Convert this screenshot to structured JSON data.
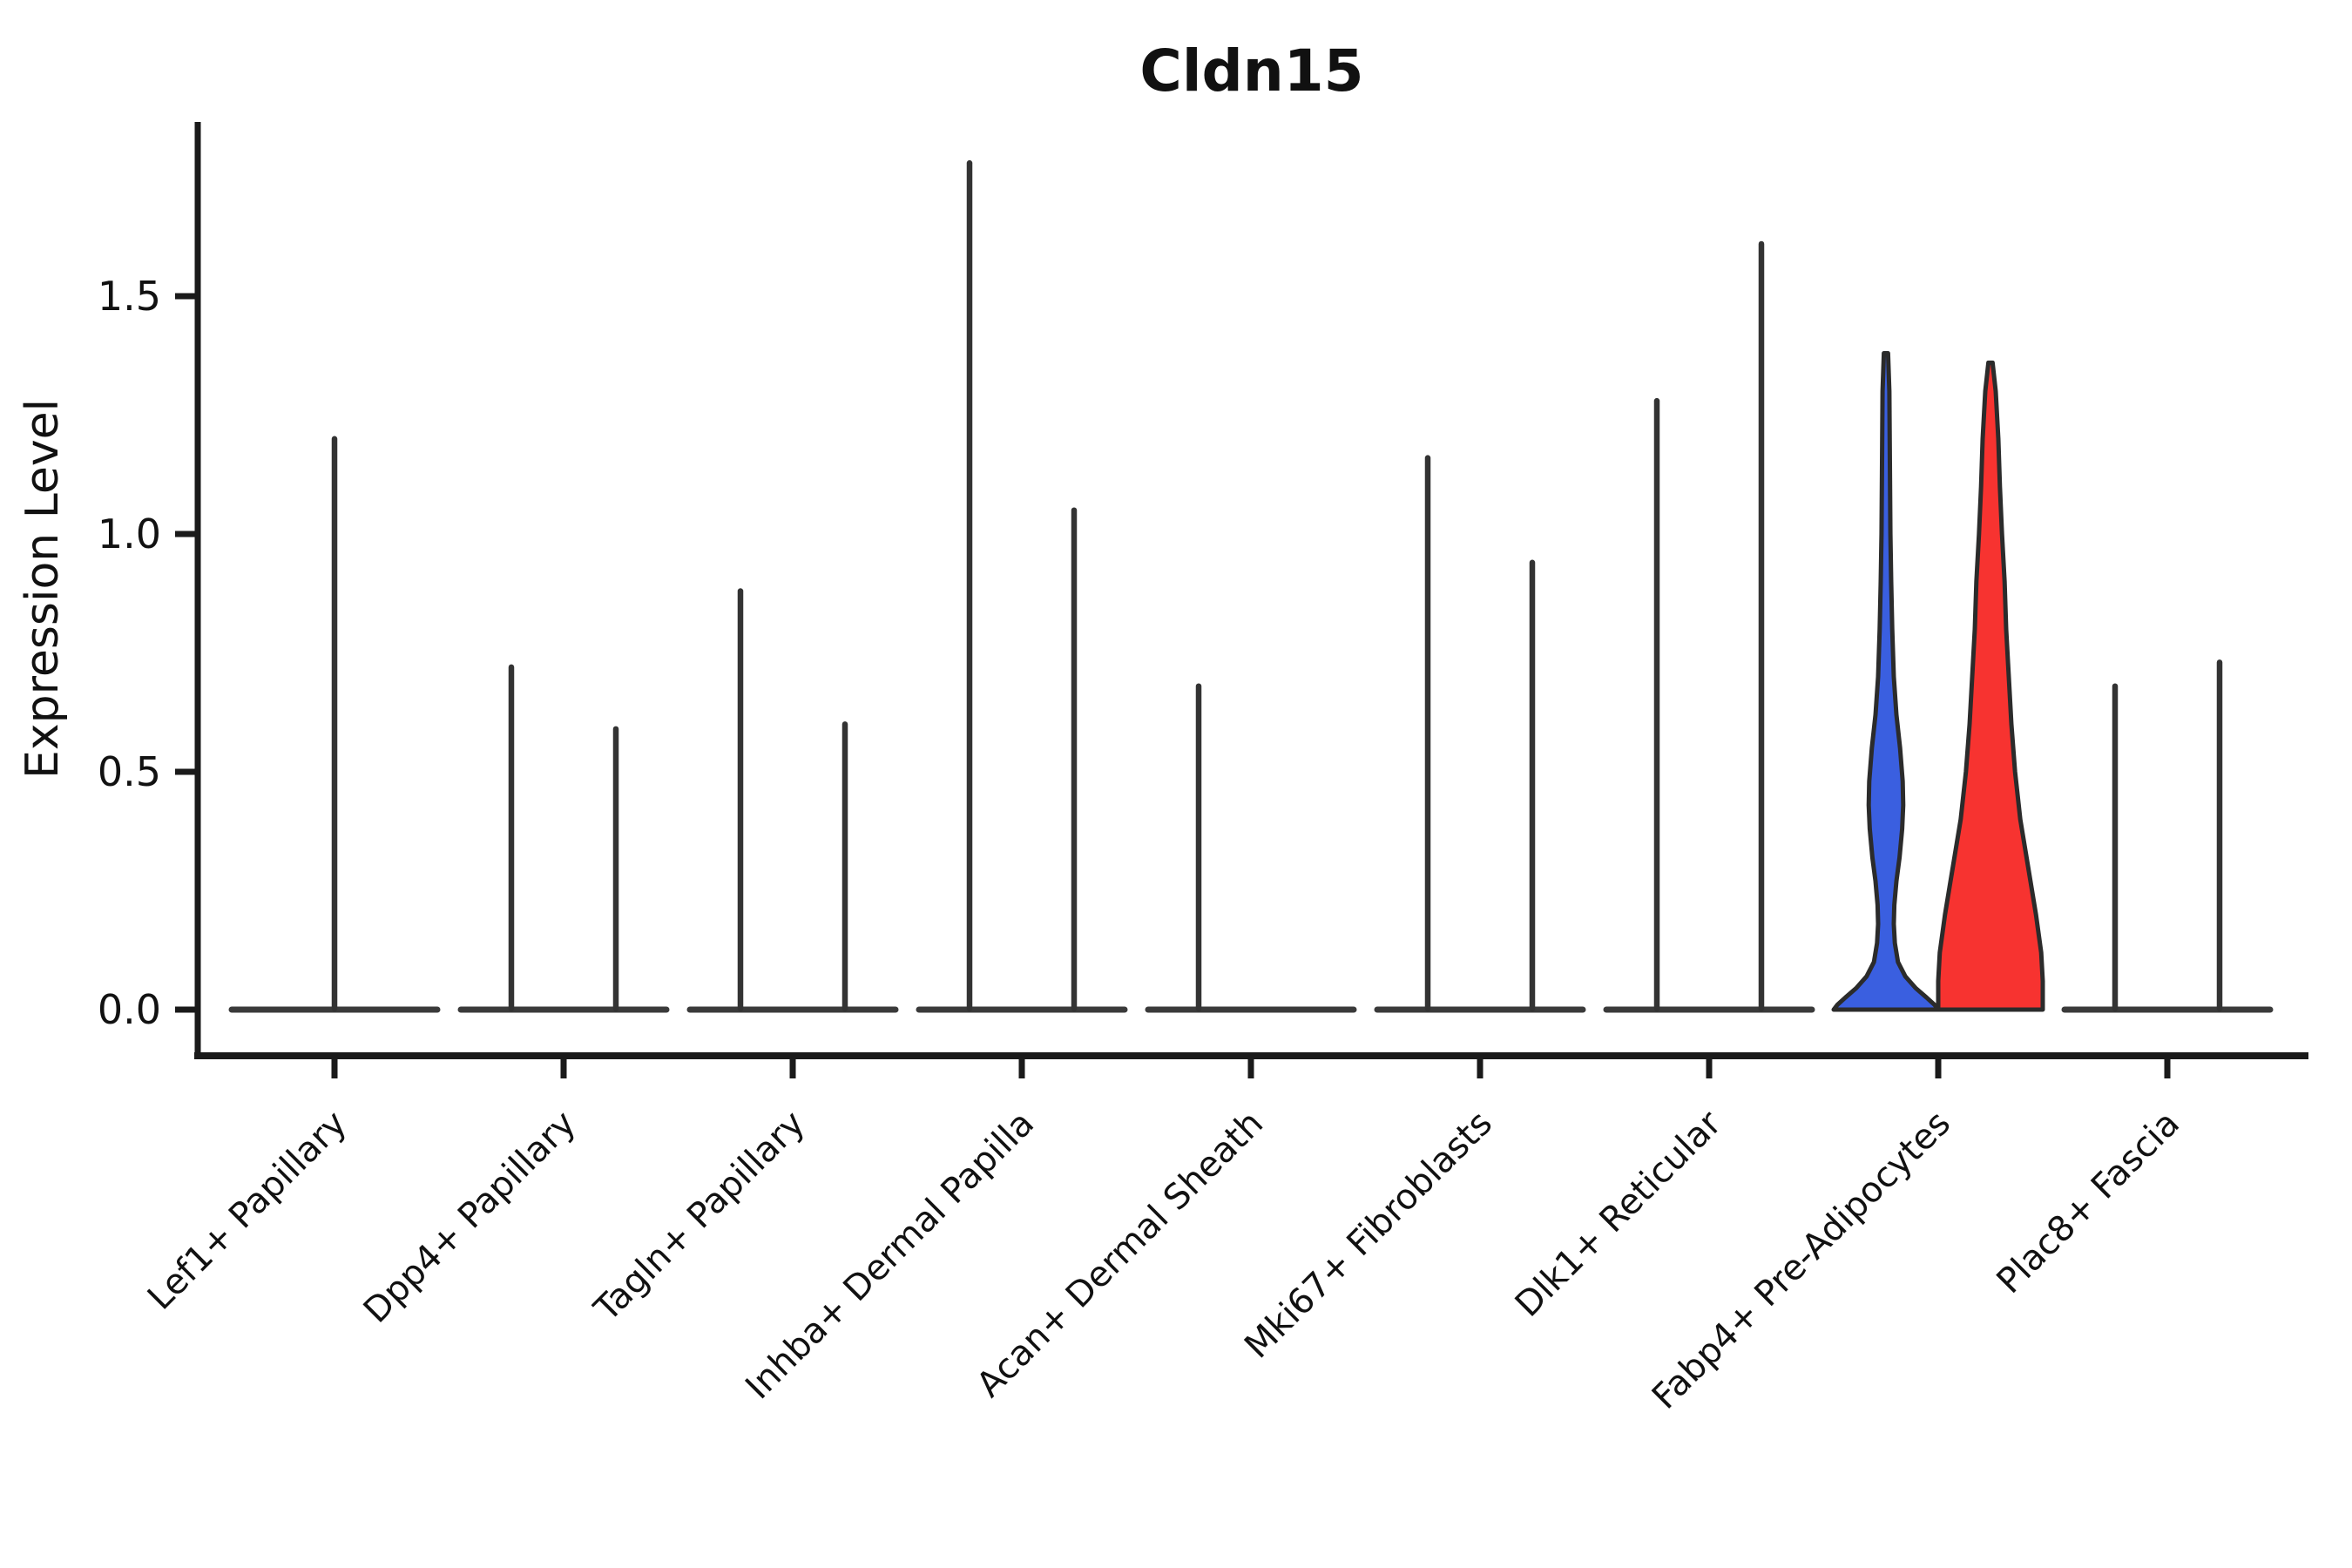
{
  "figure": {
    "background": "#ffffff",
    "axis_color": "#1a1a1a",
    "spike_color": "#333333",
    "baseline_color": "#3a3a3a",
    "violin_outline_color": "#2b2b2b"
  },
  "chart_data": {
    "type": "violin",
    "title": "Cldn15",
    "xlabel": "",
    "ylabel": "Expression Level",
    "ylim": [
      -0.095,
      1.87
    ],
    "grid": false,
    "legend_position": "none",
    "yticks": [
      {
        "value": 0.0,
        "label": "0.0"
      },
      {
        "value": 0.5,
        "label": "0.5"
      },
      {
        "value": 1.0,
        "label": "1.0"
      },
      {
        "value": 1.5,
        "label": "1.5"
      }
    ],
    "categories": [
      "Lef1+ Papillary",
      "Dpp4+ Papillary",
      "Tagln+ Papillary",
      "Inhba+ Dermal Papilla",
      "Acan+ Dermal Sheath",
      "Mki67+ Fibroblasts",
      "Dlk1+ Reticular",
      "Fabp4+ Pre-Adipocytes",
      "Plac8+ Fascia"
    ],
    "series_colors": {
      "blue": "#3a5fe0",
      "red": "#f73330"
    },
    "violins": [
      {
        "category": "Lef1+ Papillary",
        "items": [
          {
            "position": "center",
            "style": "spike",
            "max_expression": 1.2
          }
        ]
      },
      {
        "category": "Dpp4+ Papillary",
        "items": [
          {
            "position": "left",
            "style": "spike",
            "max_expression": 0.72
          },
          {
            "position": "right",
            "style": "spike",
            "max_expression": 0.59
          }
        ]
      },
      {
        "category": "Tagln+ Papillary",
        "items": [
          {
            "position": "left",
            "style": "spike",
            "max_expression": 0.88
          },
          {
            "position": "right",
            "style": "spike",
            "max_expression": 0.6
          }
        ]
      },
      {
        "category": "Inhba+ Dermal Papilla",
        "items": [
          {
            "position": "left",
            "style": "spike",
            "max_expression": 1.78
          },
          {
            "position": "right",
            "style": "spike",
            "max_expression": 1.05
          }
        ]
      },
      {
        "category": "Acan+ Dermal Sheath",
        "items": [
          {
            "position": "left",
            "style": "spike",
            "max_expression": 0.68
          }
        ]
      },
      {
        "category": "Mki67+ Fibroblasts",
        "items": [
          {
            "position": "left",
            "style": "spike",
            "max_expression": 1.16
          },
          {
            "position": "right",
            "style": "spike",
            "max_expression": 0.94
          }
        ]
      },
      {
        "category": "Dlk1+ Reticular",
        "items": [
          {
            "position": "left",
            "style": "spike",
            "max_expression": 1.28
          },
          {
            "position": "right",
            "style": "spike",
            "max_expression": 1.61
          }
        ]
      },
      {
        "category": "Fabp4+ Pre-Adipocytes",
        "items": [
          {
            "position": "left",
            "style": "violin",
            "color": "blue",
            "max_expression": 1.38,
            "profile": [
              [
                1.38,
                0.04
              ],
              [
                1.3,
                0.065
              ],
              [
                1.15,
                0.075
              ],
              [
                1.0,
                0.085
              ],
              [
                0.9,
                0.1
              ],
              [
                0.8,
                0.12
              ],
              [
                0.7,
                0.15
              ],
              [
                0.62,
                0.2
              ],
              [
                0.55,
                0.27
              ],
              [
                0.48,
                0.32
              ],
              [
                0.43,
                0.33
              ],
              [
                0.38,
                0.31
              ],
              [
                0.32,
                0.26
              ],
              [
                0.27,
                0.2
              ],
              [
                0.22,
                0.16
              ],
              [
                0.18,
                0.15
              ],
              [
                0.14,
                0.17
              ],
              [
                0.1,
                0.23
              ],
              [
                0.07,
                0.37
              ],
              [
                0.045,
                0.57
              ],
              [
                0.025,
                0.78
              ],
              [
                0.01,
                0.93
              ],
              [
                0.0,
                1.0
              ]
            ]
          },
          {
            "position": "right",
            "style": "violin",
            "color": "red",
            "max_expression": 1.36,
            "profile": [
              [
                1.36,
                0.04
              ],
              [
                1.3,
                0.1
              ],
              [
                1.2,
                0.15
              ],
              [
                1.1,
                0.18
              ],
              [
                1.0,
                0.22
              ],
              [
                0.9,
                0.27
              ],
              [
                0.8,
                0.3
              ],
              [
                0.7,
                0.35
              ],
              [
                0.6,
                0.4
              ],
              [
                0.5,
                0.47
              ],
              [
                0.4,
                0.57
              ],
              [
                0.3,
                0.72
              ],
              [
                0.2,
                0.87
              ],
              [
                0.12,
                0.97
              ],
              [
                0.06,
                1.0
              ],
              [
                0.0,
                1.0
              ]
            ]
          }
        ]
      },
      {
        "category": "Plac8+ Fascia",
        "items": [
          {
            "position": "left",
            "style": "spike",
            "max_expression": 0.68
          },
          {
            "position": "right",
            "style": "spike",
            "max_expression": 0.73
          }
        ]
      }
    ]
  }
}
